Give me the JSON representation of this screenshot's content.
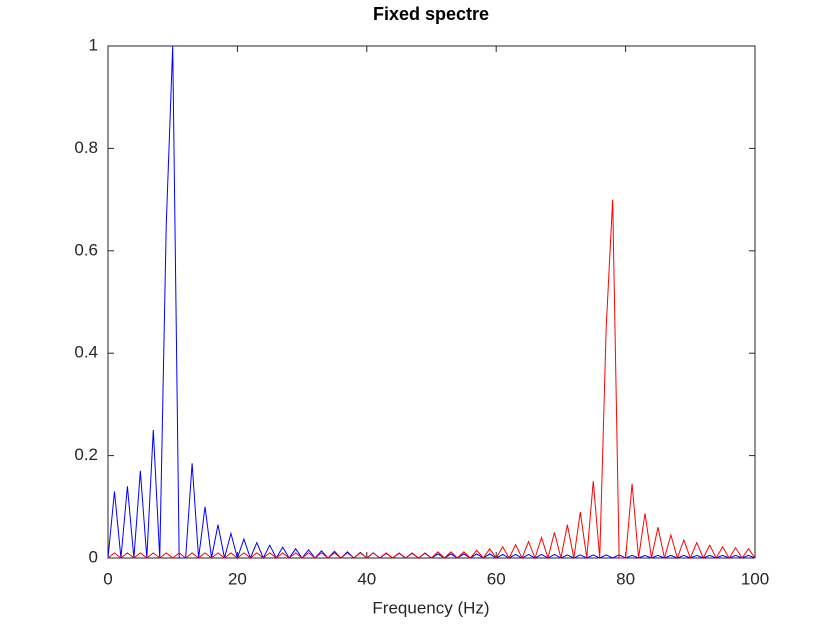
{
  "chart_data": {
    "type": "line",
    "title": "Fixed spectre",
    "xlabel": "Frequency (Hz)",
    "x": [
      0,
      1,
      2,
      3,
      4,
      5,
      6,
      7,
      8,
      9,
      10,
      11,
      12,
      13,
      14,
      15,
      16,
      17,
      18,
      19,
      20,
      21,
      22,
      23,
      24,
      25,
      26,
      27,
      28,
      29,
      30,
      31,
      32,
      33,
      34,
      35,
      36,
      37,
      38,
      39,
      40,
      41,
      42,
      43,
      44,
      45,
      46,
      47,
      48,
      49,
      50,
      51,
      52,
      53,
      54,
      55,
      56,
      57,
      58,
      59,
      60,
      61,
      62,
      63,
      64,
      65,
      66,
      67,
      68,
      69,
      70,
      71,
      72,
      73,
      74,
      75,
      76,
      77,
      78,
      79,
      80,
      81,
      82,
      83,
      84,
      85,
      86,
      87,
      88,
      89,
      90,
      91,
      92,
      93,
      94,
      95,
      96,
      97,
      98,
      99,
      100
    ],
    "series": [
      {
        "color": "#0000ff",
        "values": [
          0,
          0.13,
          0,
          0.14,
          0,
          0.17,
          0,
          0.25,
          0,
          0.65,
          1,
          0,
          0,
          0.185,
          0,
          0.1,
          0,
          0.065,
          0,
          0.048,
          0,
          0.037,
          0,
          0.03,
          0,
          0.025,
          0,
          0.021,
          0,
          0.018,
          0,
          0.016,
          0,
          0.014,
          0,
          0.013,
          0,
          0.012,
          0,
          0.011,
          0,
          0.01,
          0,
          0.009,
          0,
          0.009,
          0,
          0.009,
          0,
          0.009,
          0,
          0.008,
          0,
          0.008,
          0,
          0.008,
          0,
          0.008,
          0,
          0.008,
          0,
          0.007,
          0,
          0.007,
          0,
          0.007,
          0,
          0.007,
          0,
          0.007,
          0,
          0.006,
          0,
          0.006,
          0,
          0.006,
          0,
          0.006,
          0,
          0.006,
          0,
          0.005,
          0,
          0.005,
          0,
          0.005,
          0,
          0.005,
          0,
          0.005,
          0,
          0.005,
          0,
          0.005,
          0,
          0.005,
          0,
          0.005,
          0,
          0.005,
          0
        ]
      },
      {
        "color": "#ff0000",
        "values": [
          0,
          0.01,
          0,
          0.01,
          0,
          0.01,
          0,
          0.01,
          0,
          0.01,
          0,
          0.01,
          0,
          0.01,
          0,
          0.01,
          0,
          0.01,
          0,
          0.01,
          0,
          0.01,
          0,
          0.01,
          0,
          0.01,
          0,
          0.01,
          0,
          0.01,
          0,
          0.01,
          0,
          0.01,
          0,
          0.01,
          0,
          0.01,
          0,
          0.01,
          0,
          0.01,
          0,
          0.01,
          0,
          0.01,
          0,
          0.01,
          0,
          0.01,
          0,
          0.012,
          0,
          0.012,
          0,
          0.012,
          0,
          0.015,
          0,
          0.018,
          0,
          0.022,
          0,
          0.026,
          0,
          0.032,
          0,
          0.04,
          0,
          0.05,
          0,
          0.065,
          0,
          0.09,
          0,
          0.15,
          0,
          0.45,
          0.7,
          0,
          0,
          0.145,
          0,
          0.087,
          0,
          0.06,
          0,
          0.045,
          0,
          0.035,
          0,
          0.03,
          0,
          0.025,
          0,
          0.022,
          0,
          0.02,
          0,
          0.018,
          0
        ]
      }
    ],
    "xlim": [
      0,
      100
    ],
    "xticks": [
      0,
      20,
      40,
      60,
      80,
      100
    ],
    "ylim": [
      0,
      1
    ],
    "yticks": [
      0,
      0.2,
      0.4,
      0.6,
      0.8,
      1
    ]
  }
}
